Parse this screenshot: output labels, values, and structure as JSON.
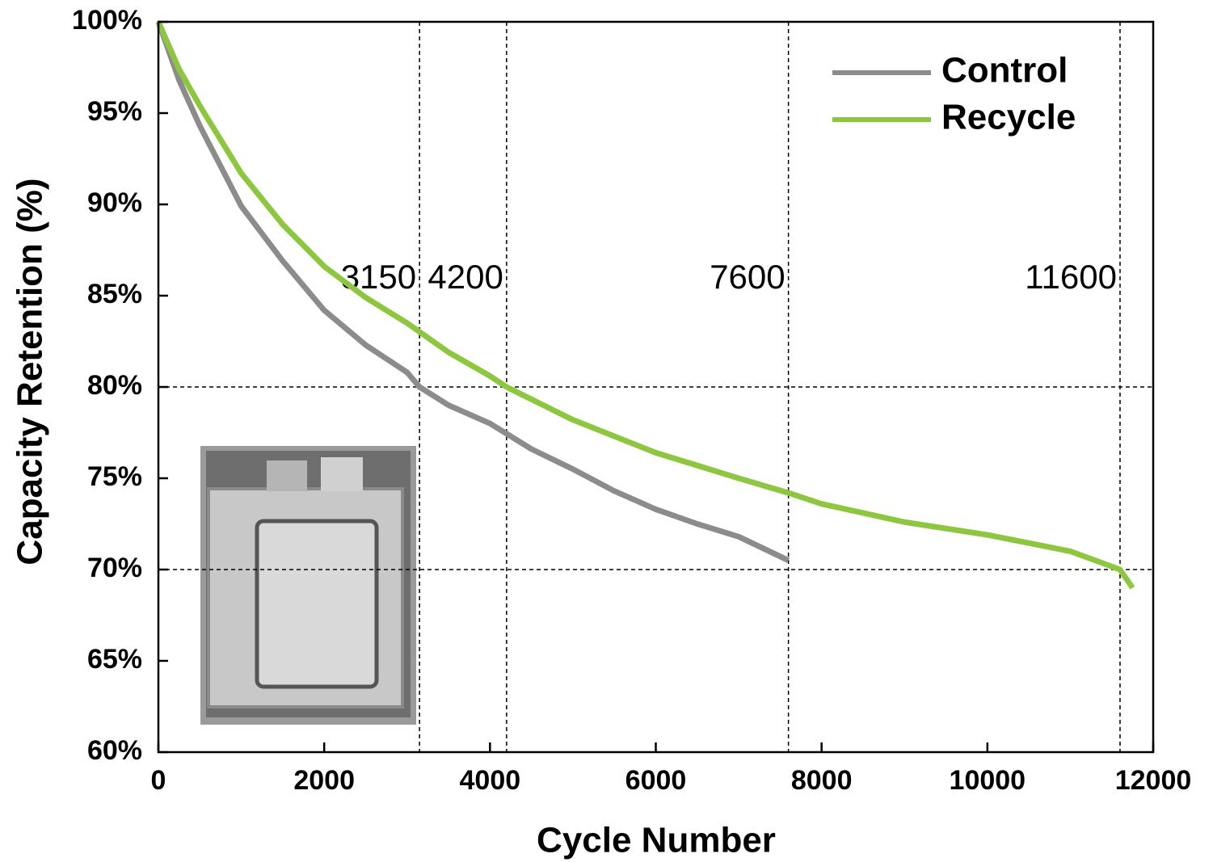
{
  "chart_data": {
    "type": "line",
    "x_label": "Cycle Number",
    "y_label": "Capacity Retention (%)",
    "xlim": [
      0,
      12000
    ],
    "xticks": [
      0,
      2000,
      4000,
      6000,
      8000,
      10000,
      12000
    ],
    "ylim": [
      60,
      100
    ],
    "yticks": [
      {
        "value": 60,
        "label": "60%"
      },
      {
        "value": 65,
        "label": "65%"
      },
      {
        "value": 70,
        "label": "70%"
      },
      {
        "value": 75,
        "label": "75%"
      },
      {
        "value": 80,
        "label": "80%"
      },
      {
        "value": 85,
        "label": "85%"
      },
      {
        "value": 90,
        "label": "90%"
      },
      {
        "value": 95,
        "label": "95%"
      },
      {
        "value": 100,
        "label": "100%"
      }
    ],
    "legend": "upper right",
    "series": [
      {
        "name": "Control",
        "color": "#8c8c8c",
        "x": [
          0,
          250,
          500,
          1000,
          1500,
          2000,
          2500,
          3000,
          3150,
          3500,
          4000,
          4500,
          5000,
          5500,
          6000,
          6500,
          7000,
          7600
        ],
        "values": [
          100,
          96.8,
          94.3,
          89.9,
          86.9,
          84.2,
          82.3,
          80.8,
          80,
          79,
          78,
          76.6,
          75.5,
          74.3,
          73.3,
          72.5,
          71.8,
          70.5
        ]
      },
      {
        "name": "Recycle",
        "color": "#8dc63f",
        "x": [
          0,
          250,
          500,
          1000,
          1500,
          2000,
          2500,
          3000,
          3500,
          4000,
          4200,
          5000,
          6000,
          7000,
          7600,
          8000,
          9000,
          10000,
          11000,
          11600,
          11750
        ],
        "values": [
          100,
          97.4,
          95.4,
          91.7,
          88.9,
          86.6,
          84.9,
          83.5,
          81.9,
          80.6,
          80,
          78.2,
          76.4,
          75,
          74.2,
          73.6,
          72.6,
          71.9,
          71,
          70,
          69
        ]
      }
    ],
    "vlines": [
      3150,
      4200,
      7600,
      11600
    ],
    "hlines": [
      80,
      70
    ]
  }
}
